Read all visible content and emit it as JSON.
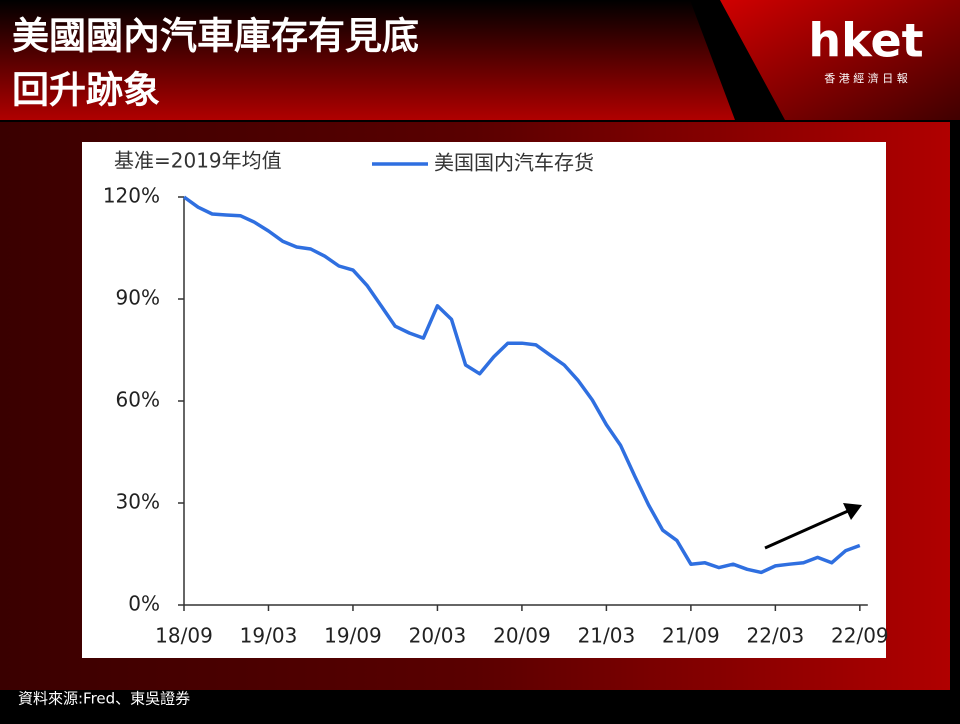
{
  "header": {
    "title_lines": [
      "美國國內汽車庫存有見底",
      "回升跡象"
    ],
    "logo": "hket",
    "logo_sub": "香 港 經 濟 日 報"
  },
  "chart_data": {
    "type": "line",
    "note": "基准=2019年均值",
    "categories": [
      "18/09",
      null,
      null,
      null,
      null,
      null,
      "19/03",
      null,
      null,
      null,
      null,
      null,
      "19/09",
      null,
      null,
      null,
      null,
      null,
      "20/03",
      null,
      null,
      null,
      null,
      null,
      "20/09",
      null,
      null,
      null,
      null,
      null,
      "21/03",
      null,
      null,
      null,
      null,
      null,
      "21/09",
      null,
      null,
      null,
      null,
      null,
      "22/03",
      null,
      null,
      null,
      null,
      null,
      "22/09"
    ],
    "series": [
      {
        "name": "美国国内汽车存货",
        "color": "#2f6fe0",
        "values": [
          120,
          117,
          115,
          114.7,
          114.5,
          112.6,
          110,
          107,
          105.3,
          104.7,
          102.6,
          99.7,
          98.5,
          94,
          88,
          82,
          80,
          78.5,
          88,
          84,
          70.6,
          68,
          73,
          77,
          77,
          76.5,
          73.5,
          70.6,
          66,
          60.3,
          53,
          47,
          38,
          29.4,
          22,
          19,
          12,
          12.4,
          11,
          12,
          10.5,
          9.6,
          11.5,
          12,
          12.4,
          14,
          12.4,
          16,
          17.5
        ]
      }
    ],
    "ylim": [
      0,
      120
    ],
    "yticks": [
      {
        "value": 0,
        "label": "0%"
      },
      {
        "value": 30,
        "label": "30%"
      },
      {
        "value": 60,
        "label": "60%"
      },
      {
        "value": 90,
        "label": "90%"
      },
      {
        "value": 120,
        "label": "120%"
      }
    ]
  },
  "source": "資料來源:Fred、東吳證券"
}
